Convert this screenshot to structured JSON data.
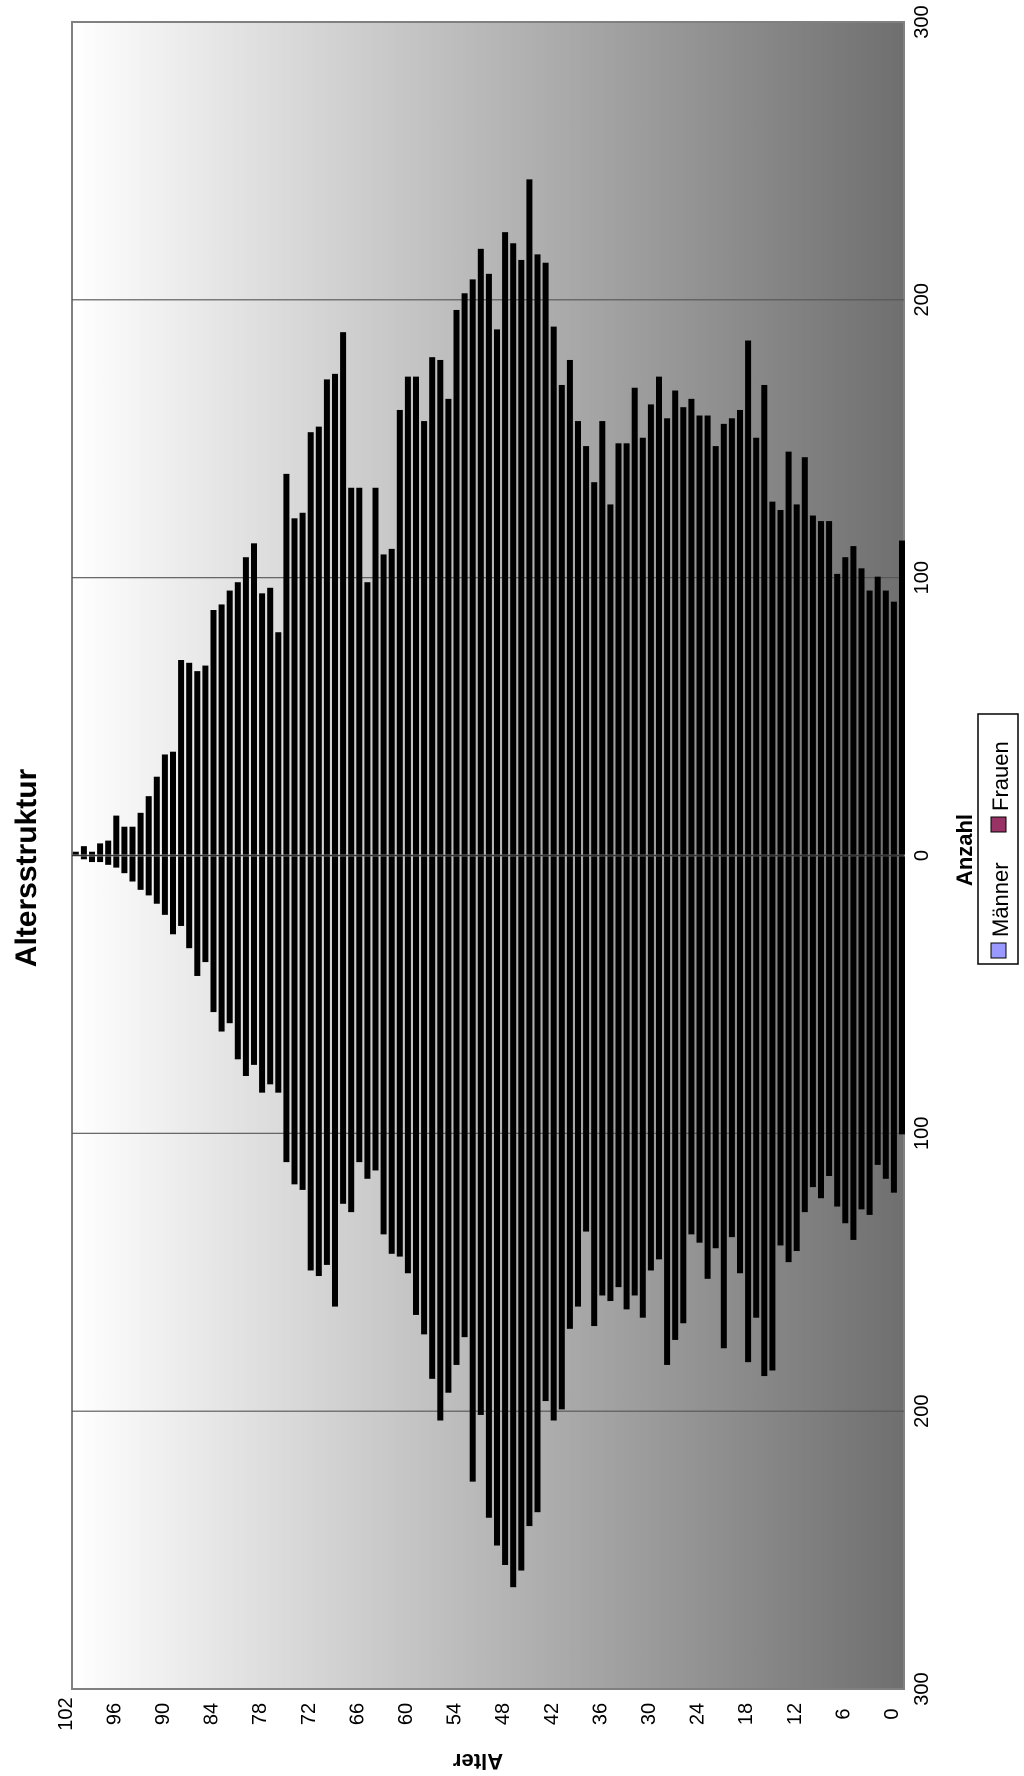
{
  "chart_data": {
    "type": "bar",
    "orientation": "rotated-90-clockwise",
    "title": "Altersstruktur",
    "xlabel": "Anzahl",
    "ylabel": "Alter",
    "age_range": [
      0,
      102
    ],
    "age_ticks": [
      "0",
      "6",
      "12",
      "18",
      "24",
      "30",
      "36",
      "42",
      "48",
      "54",
      "60",
      "66",
      "72",
      "78",
      "84",
      "90",
      "96",
      "102"
    ],
    "count_ticks_men": [
      "300",
      "200",
      "100"
    ],
    "count_ticks_women": [
      "0",
      "100",
      "200",
      "300"
    ],
    "xlim": [
      -300,
      300
    ],
    "grid": true,
    "legend_position": "bottom",
    "series": [
      {
        "name": "Männer",
        "color": "#9999ff",
        "values": [
          100,
          121,
          116,
          111,
          129,
          127,
          138,
          132,
          126,
          115,
          123,
          119,
          128,
          142,
          146,
          140,
          185,
          187,
          166,
          182,
          150,
          137,
          177,
          141,
          152,
          139,
          136,
          168,
          174,
          183,
          145,
          149,
          166,
          158,
          163,
          155,
          160,
          158,
          169,
          135,
          162,
          170,
          199,
          203,
          196,
          236,
          241,
          257,
          263,
          255,
          248,
          238,
          201,
          225,
          173,
          183,
          193,
          203,
          188,
          172,
          165,
          150,
          144,
          143,
          136,
          113,
          116,
          110,
          128,
          125,
          162,
          147,
          151,
          149,
          120,
          118,
          110,
          85,
          82,
          85,
          75,
          79,
          73,
          60,
          63,
          56,
          38,
          43,
          33,
          25,
          28,
          21,
          17,
          14,
          12,
          9,
          6,
          4,
          3,
          2,
          2,
          1,
          0
        ]
      },
      {
        "name": "Frauen",
        "color": "#993366",
        "values": [
          113,
          91,
          95,
          100,
          95,
          103,
          111,
          107,
          101,
          120,
          120,
          122,
          143,
          126,
          145,
          124,
          127,
          169,
          150,
          185,
          160,
          157,
          155,
          147,
          158,
          158,
          164,
          161,
          167,
          157,
          172,
          162,
          150,
          168,
          148,
          148,
          126,
          156,
          134,
          147,
          156,
          178,
          169,
          190,
          213,
          216,
          243,
          214,
          220,
          224,
          189,
          209,
          218,
          207,
          202,
          196,
          164,
          178,
          179,
          156,
          172,
          172,
          160,
          110,
          108,
          132,
          98,
          132,
          132,
          188,
          173,
          171,
          154,
          152,
          123,
          121,
          137,
          80,
          96,
          94,
          112,
          107,
          98,
          95,
          90,
          88,
          68,
          66,
          69,
          70,
          37,
          36,
          28,
          21,
          15,
          10,
          10,
          14,
          5,
          4,
          1,
          3,
          1
        ]
      }
    ]
  }
}
